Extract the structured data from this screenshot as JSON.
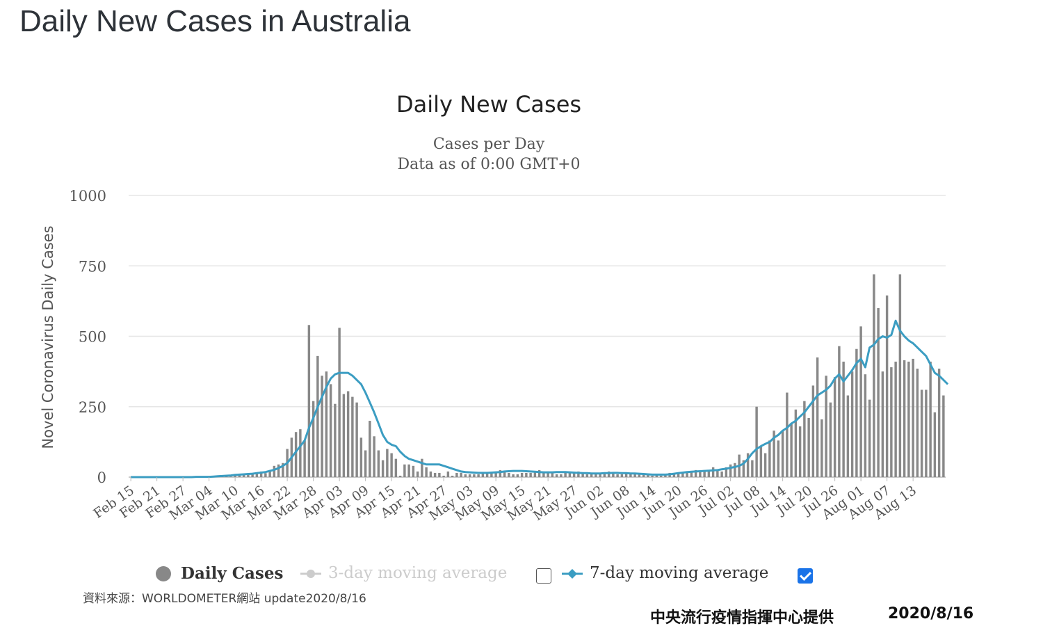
{
  "page": {
    "title": "Daily New Cases in Australia",
    "source_note": "資料來源：WORLDOMETER網站  update2020/8/16",
    "provider": "中央流行疫情指揮中心提供",
    "date": "2020/8/16"
  },
  "legend": {
    "daily_cases": "Daily Cases",
    "avg3": "3-day moving average",
    "avg3_checked": false,
    "avg7": "7-day moving average",
    "avg7_checked": true
  },
  "colors": {
    "bars": "#888888",
    "avg7": "#3b9dc2",
    "avg3_disabled": "#cccccc",
    "grid": "#e6e6e6"
  },
  "chart_data": {
    "type": "bar",
    "title": "Daily New Cases",
    "subtitle_lines": [
      "Cases per Day",
      "Data as of 0:00 GMT+0"
    ],
    "ylabel": "Novel Coronavirus Daily Cases",
    "ylim": [
      0,
      1000
    ],
    "yticks": [
      0,
      250,
      500,
      750,
      1000
    ],
    "xtick_labels": [
      "Feb 15",
      "Feb 21",
      "Feb 27",
      "Mar 04",
      "Mar 10",
      "Mar 16",
      "Mar 22",
      "Mar 28",
      "Apr 03",
      "Apr 09",
      "Apr 15",
      "Apr 21",
      "Apr 27",
      "May 03",
      "May 09",
      "May 15",
      "May 21",
      "May 27",
      "Jun 02",
      "Jun 08",
      "Jun 14",
      "Jun 20",
      "Jun 26",
      "Jul 02",
      "Jul 08",
      "Jul 14",
      "Jul 20",
      "Jul 26",
      "Aug 01",
      "Aug 07",
      "Aug 13"
    ],
    "start_label": "Feb 15",
    "series": [
      {
        "name": "Daily Cases",
        "values": [
          0,
          0,
          0,
          0,
          0,
          0,
          0,
          0,
          0,
          0,
          0,
          0,
          0,
          0,
          0,
          0,
          0,
          0,
          1,
          2,
          1,
          3,
          5,
          2,
          5,
          8,
          11,
          10,
          12,
          15,
          20,
          14,
          25,
          40,
          45,
          50,
          100,
          140,
          160,
          170,
          130,
          540,
          270,
          430,
          360,
          375,
          330,
          260,
          530,
          295,
          305,
          285,
          265,
          140,
          95,
          200,
          145,
          95,
          60,
          100,
          85,
          65,
          5,
          45,
          45,
          40,
          20,
          65,
          35,
          20,
          15,
          15,
          5,
          20,
          5,
          15,
          15,
          10,
          10,
          10,
          10,
          15,
          15,
          15,
          20,
          25,
          20,
          15,
          10,
          10,
          15,
          15,
          15,
          20,
          25,
          20,
          20,
          15,
          10,
          10,
          15,
          15,
          15,
          20,
          15,
          10,
          10,
          15,
          15,
          15,
          20,
          15,
          10,
          10,
          15,
          15,
          15,
          10,
          10,
          10,
          5,
          10,
          5,
          10,
          15,
          10,
          15,
          15,
          20,
          20,
          25,
          20,
          25,
          20,
          35,
          25,
          20,
          35,
          45,
          50,
          80,
          60,
          85,
          60,
          250,
          110,
          85,
          130,
          165,
          130,
          165,
          300,
          190,
          240,
          180,
          270,
          210,
          325,
          425,
          205,
          360,
          265,
          355,
          465,
          410,
          290,
          375,
          455,
          535,
          365,
          275,
          720,
          600,
          375,
          645,
          390,
          410,
          720,
          415,
          410,
          420,
          385,
          310,
          310,
          410,
          230,
          385,
          290
        ]
      },
      {
        "name": "7-day moving average",
        "values": [
          0,
          0,
          0,
          0,
          0,
          0,
          0,
          0,
          0,
          0,
          0,
          0,
          0,
          0,
          0,
          1,
          1,
          1,
          1,
          2,
          3,
          4,
          5,
          6,
          8,
          9,
          10,
          11,
          12,
          14,
          16,
          18,
          22,
          26,
          32,
          40,
          50,
          70,
          90,
          110,
          130,
          175,
          210,
          250,
          285,
          320,
          350,
          365,
          370,
          370,
          370,
          360,
          345,
          330,
          300,
          265,
          230,
          190,
          150,
          125,
          115,
          110,
          90,
          75,
          65,
          60,
          55,
          50,
          45,
          45,
          45,
          45,
          40,
          35,
          30,
          25,
          20,
          18,
          17,
          16,
          15,
          15,
          15,
          16,
          17,
          18,
          20,
          21,
          22,
          22,
          22,
          21,
          20,
          19,
          18,
          17,
          17,
          17,
          18,
          18,
          18,
          17,
          16,
          15,
          14,
          14,
          13,
          13,
          13,
          14,
          14,
          15,
          15,
          14,
          14,
          13,
          13,
          12,
          11,
          10,
          9,
          9,
          9,
          9,
          10,
          12,
          14,
          16,
          18,
          19,
          20,
          21,
          22,
          23,
          24,
          25,
          28,
          30,
          33,
          36,
          40,
          48,
          65,
          85,
          100,
          110,
          118,
          125,
          140,
          150,
          165,
          175,
          190,
          200,
          215,
          230,
          250,
          270,
          290,
          300,
          310,
          325,
          350,
          365,
          340,
          360,
          380,
          405,
          420,
          390,
          460,
          470,
          490,
          500,
          495,
          505,
          555,
          520,
          500,
          485,
          475,
          460,
          445,
          430,
          400,
          370,
          360,
          345,
          330
        ]
      }
    ]
  }
}
